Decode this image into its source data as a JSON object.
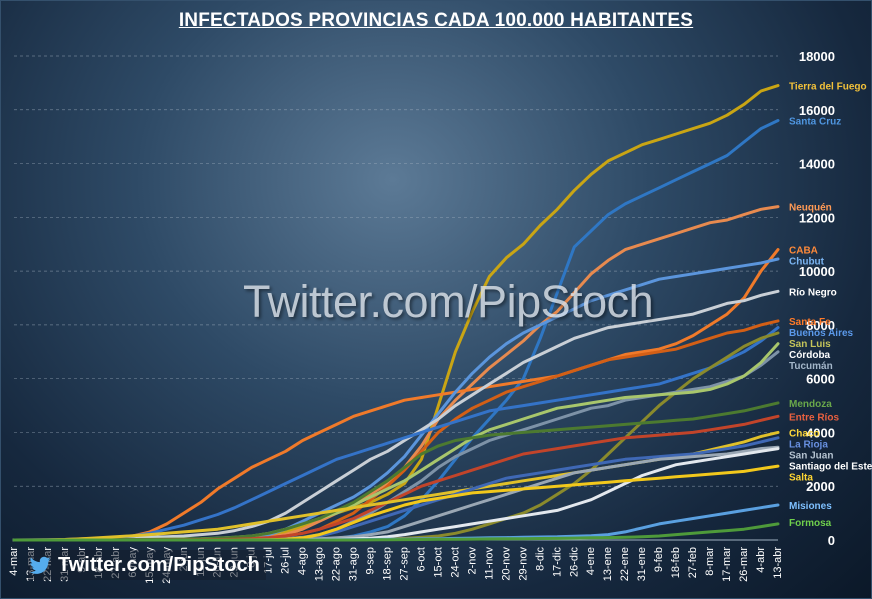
{
  "chart_data": {
    "type": "line",
    "title": "INFECTADOS  PROVINCIAS CADA 100.000 HABITANTES",
    "ylim": [
      0,
      18000
    ],
    "yticks": [
      0,
      2000,
      4000,
      6000,
      8000,
      10000,
      12000,
      14000,
      16000,
      18000
    ],
    "grid": true,
    "legend": "direct labels at right end of lines",
    "xtick_labels": [
      "4-mar",
      "13-mar",
      "22-mar",
      "31-mar",
      "9-abr",
      "18-abr",
      "27-abr",
      "6-may",
      "15-may",
      "24-may",
      "2-jun",
      "11-jun",
      "20-jun",
      "29-jun",
      "8-jul",
      "17-jul",
      "26-jul",
      "4-ago",
      "13-ago",
      "22-ago",
      "31-ago",
      "9-sep",
      "18-sep",
      "27-sep",
      "6-oct",
      "15-oct",
      "24-oct",
      "2-nov",
      "11-nov",
      "20-nov",
      "29-nov",
      "8-dic",
      "17-dic",
      "26-dic",
      "4-ene",
      "13-ene",
      "22-ene",
      "31-ene",
      "9-feb",
      "18-feb",
      "27-feb",
      "8-mar",
      "17-mar",
      "26-mar",
      "4-abr",
      "13-abr"
    ],
    "series": [
      {
        "name": "Tierra del Fuego",
        "color": "#c9a514",
        "label_color": "#f2c13a",
        "values": [
          0,
          0,
          0,
          5,
          10,
          15,
          15,
          15,
          15,
          15,
          20,
          20,
          25,
          40,
          80,
          150,
          300,
          500,
          800,
          1000,
          1200,
          1400,
          1700,
          2100,
          3000,
          5000,
          7000,
          8500,
          9800,
          10500,
          11000,
          11700,
          12300,
          13000,
          13600,
          14100,
          14400,
          14700,
          14900,
          15100,
          15300,
          15500,
          15800,
          16200,
          16700,
          16900
        ]
      },
      {
        "name": "Santa Cruz",
        "color": "#2f77c4",
        "label_color": "#4f96e0",
        "values": [
          0,
          0,
          0,
          0,
          0,
          0,
          0,
          0,
          0,
          0,
          0,
          0,
          0,
          0,
          0,
          0,
          0,
          10,
          30,
          60,
          150,
          300,
          500,
          900,
          1500,
          2200,
          3000,
          3800,
          4500,
          5200,
          6000,
          7500,
          9200,
          10900,
          11500,
          12100,
          12500,
          12800,
          13100,
          13400,
          13700,
          14000,
          14300,
          14800,
          15300,
          15600
        ]
      },
      {
        "name": "Neuquén",
        "color": "#e78a4f",
        "label_color": "#ff9a55",
        "values": [
          0,
          0,
          0,
          0,
          10,
          15,
          20,
          20,
          20,
          20,
          25,
          30,
          40,
          60,
          80,
          120,
          200,
          400,
          700,
          1000,
          1300,
          1700,
          2100,
          2700,
          3500,
          4500,
          5200,
          5800,
          6400,
          6900,
          7400,
          8000,
          8500,
          9200,
          9900,
          10400,
          10800,
          11000,
          11200,
          11400,
          11600,
          11800,
          11900,
          12100,
          12300,
          12400
        ]
      },
      {
        "name": "CABA",
        "color": "#f07a2a",
        "label_color": "#ff8a3a",
        "values": [
          0,
          5,
          10,
          20,
          40,
          60,
          80,
          150,
          300,
          600,
          1000,
          1400,
          1900,
          2300,
          2700,
          3000,
          3300,
          3700,
          4000,
          4300,
          4600,
          4800,
          5000,
          5200,
          5300,
          5400,
          5500,
          5600,
          5700,
          5800,
          5900,
          6000,
          6100,
          6300,
          6500,
          6700,
          6900,
          7000,
          7100,
          7300,
          7600,
          8000,
          8400,
          9000,
          10000,
          10800
        ]
      },
      {
        "name": "Chubut",
        "color": "#5b95dc",
        "label_color": "#7ab4f2",
        "values": [
          0,
          0,
          0,
          0,
          0,
          0,
          0,
          0,
          5,
          10,
          15,
          20,
          30,
          50,
          100,
          200,
          400,
          700,
          1000,
          1300,
          1600,
          2000,
          2500,
          3100,
          3900,
          4700,
          5500,
          6200,
          6800,
          7300,
          7700,
          8000,
          8300,
          8600,
          8900,
          9100,
          9300,
          9500,
          9700,
          9800,
          9900,
          10000,
          10100,
          10200,
          10300,
          10450
        ]
      },
      {
        "name": "Río Negro",
        "color": "#c9cfd6",
        "label_color": "#ffffff",
        "values": [
          0,
          0,
          0,
          5,
          20,
          40,
          60,
          80,
          100,
          120,
          150,
          200,
          250,
          350,
          500,
          700,
          1000,
          1400,
          1800,
          2200,
          2600,
          3000,
          3300,
          3700,
          4100,
          4500,
          5000,
          5400,
          5800,
          6200,
          6600,
          6900,
          7200,
          7500,
          7700,
          7900,
          8000,
          8100,
          8200,
          8300,
          8400,
          8600,
          8800,
          8900,
          9100,
          9250
        ]
      },
      {
        "name": "Santa Fe",
        "color": "#d35f16",
        "label_color": "#ff7a28",
        "values": [
          0,
          0,
          0,
          5,
          10,
          10,
          10,
          10,
          10,
          15,
          20,
          20,
          30,
          40,
          60,
          90,
          150,
          250,
          400,
          700,
          1000,
          1500,
          2000,
          2600,
          3300,
          4000,
          4500,
          4900,
          5200,
          5500,
          5700,
          5900,
          6100,
          6300,
          6500,
          6700,
          6800,
          6900,
          7000,
          7100,
          7300,
          7500,
          7700,
          7800,
          8000,
          8150
        ]
      },
      {
        "name": "Buenos Aires",
        "color": "#3473c8",
        "label_color": "#5b99ea",
        "values": [
          0,
          5,
          10,
          20,
          40,
          60,
          100,
          150,
          250,
          400,
          550,
          750,
          950,
          1200,
          1500,
          1800,
          2100,
          2400,
          2700,
          3000,
          3200,
          3400,
          3600,
          3800,
          4000,
          4200,
          4400,
          4600,
          4800,
          4900,
          5000,
          5100,
          5200,
          5300,
          5400,
          5500,
          5600,
          5700,
          5800,
          6000,
          6200,
          6400,
          6700,
          7000,
          7400,
          7900
        ]
      },
      {
        "name": "San Luis",
        "color": "#8a8a2c",
        "label_color": "#c4c45a",
        "values": [
          0,
          0,
          0,
          0,
          0,
          0,
          0,
          0,
          0,
          0,
          0,
          0,
          0,
          0,
          0,
          0,
          0,
          0,
          5,
          10,
          20,
          30,
          40,
          60,
          100,
          150,
          250,
          400,
          600,
          800,
          1000,
          1300,
          1700,
          2100,
          2600,
          3200,
          3800,
          4400,
          5000,
          5500,
          6000,
          6400,
          6800,
          7200,
          7500,
          7700
        ]
      },
      {
        "name": "Tucumán",
        "color": "#7d92a7",
        "label_color": "#a3b6c9",
        "values": [
          0,
          0,
          0,
          0,
          0,
          0,
          0,
          0,
          0,
          0,
          0,
          0,
          0,
          5,
          10,
          20,
          50,
          100,
          200,
          400,
          700,
          1000,
          1400,
          1800,
          2200,
          2700,
          3100,
          3400,
          3700,
          3900,
          4100,
          4300,
          4500,
          4700,
          4900,
          5000,
          5200,
          5300,
          5400,
          5500,
          5600,
          5700,
          5900,
          6100,
          6500,
          7000
        ]
      },
      {
        "name": "Córdoba",
        "color": "#a8c66c",
        "label_color": "#ffffff",
        "values": [
          0,
          0,
          0,
          5,
          10,
          15,
          20,
          20,
          25,
          30,
          40,
          50,
          70,
          100,
          150,
          250,
          400,
          600,
          800,
          1000,
          1300,
          1600,
          1900,
          2200,
          2600,
          3000,
          3400,
          3800,
          4100,
          4300,
          4500,
          4700,
          4900,
          5000,
          5100,
          5200,
          5300,
          5350,
          5400,
          5450,
          5500,
          5600,
          5800,
          6100,
          6600,
          7300
        ]
      },
      {
        "name": "Mendoza",
        "color": "#4c7a30",
        "label_color": "#6aa84a",
        "values": [
          0,
          0,
          0,
          5,
          10,
          15,
          20,
          20,
          20,
          25,
          30,
          40,
          60,
          100,
          150,
          250,
          400,
          600,
          800,
          1100,
          1400,
          1800,
          2200,
          2700,
          3200,
          3500,
          3700,
          3800,
          3900,
          3950,
          4000,
          4050,
          4100,
          4150,
          4200,
          4250,
          4300,
          4350,
          4400,
          4450,
          4500,
          4600,
          4700,
          4800,
          4950,
          5100
        ]
      },
      {
        "name": "Entre Ríos",
        "color": "#c2442a",
        "label_color": "#e9603f",
        "values": [
          0,
          0,
          0,
          0,
          5,
          5,
          5,
          5,
          5,
          10,
          10,
          15,
          20,
          30,
          50,
          80,
          150,
          250,
          400,
          600,
          800,
          1100,
          1400,
          1700,
          2000,
          2200,
          2400,
          2600,
          2800,
          3000,
          3200,
          3300,
          3400,
          3500,
          3600,
          3700,
          3800,
          3850,
          3900,
          3950,
          4000,
          4100,
          4200,
          4300,
          4450,
          4600
        ]
      },
      {
        "name": "Chaco",
        "color": "#e0c02a",
        "label_color": "#ffd93a",
        "values": [
          0,
          0,
          5,
          20,
          50,
          80,
          120,
          160,
          200,
          250,
          300,
          350,
          400,
          500,
          600,
          700,
          800,
          900,
          1000,
          1100,
          1200,
          1300,
          1400,
          1500,
          1600,
          1700,
          1800,
          1900,
          2000,
          2100,
          2200,
          2300,
          2400,
          2500,
          2600,
          2700,
          2800,
          2900,
          3000,
          3100,
          3200,
          3350,
          3500,
          3650,
          3850,
          4000
        ]
      },
      {
        "name": "La Rioja",
        "color": "#3f68b5",
        "label_color": "#6890e0",
        "values": [
          0,
          0,
          0,
          0,
          0,
          0,
          0,
          0,
          0,
          0,
          0,
          0,
          0,
          0,
          5,
          10,
          30,
          80,
          150,
          300,
          500,
          700,
          900,
          1100,
          1300,
          1500,
          1700,
          1900,
          2100,
          2300,
          2400,
          2500,
          2600,
          2700,
          2800,
          2900,
          3000,
          3050,
          3100,
          3150,
          3200,
          3300,
          3400,
          3500,
          3650,
          3800
        ]
      },
      {
        "name": "San Juan",
        "color": "#9aa7b4",
        "label_color": "#b4c2d0",
        "values": [
          0,
          0,
          0,
          0,
          0,
          0,
          0,
          0,
          0,
          0,
          0,
          0,
          0,
          0,
          0,
          5,
          10,
          30,
          50,
          80,
          120,
          200,
          300,
          500,
          700,
          900,
          1100,
          1300,
          1500,
          1700,
          1900,
          2100,
          2300,
          2500,
          2600,
          2700,
          2800,
          2900,
          3000,
          3050,
          3100,
          3150,
          3200,
          3300,
          3400,
          3450
        ]
      },
      {
        "name": "Santiago del Estero",
        "color": "#e3e8ee",
        "label_color": "#ffffff",
        "values": [
          0,
          0,
          0,
          0,
          0,
          0,
          0,
          0,
          0,
          0,
          0,
          0,
          0,
          0,
          0,
          0,
          0,
          5,
          10,
          20,
          40,
          70,
          120,
          200,
          300,
          400,
          500,
          600,
          700,
          800,
          900,
          1000,
          1100,
          1300,
          1500,
          1800,
          2100,
          2400,
          2600,
          2800,
          2900,
          3000,
          3100,
          3200,
          3300,
          3400
        ]
      },
      {
        "name": "Salta",
        "color": "#f2c81c",
        "label_color": "#ffd633",
        "values": [
          0,
          0,
          0,
          0,
          0,
          0,
          0,
          0,
          0,
          0,
          0,
          0,
          0,
          0,
          5,
          10,
          30,
          80,
          200,
          400,
          650,
          900,
          1100,
          1300,
          1450,
          1550,
          1650,
          1750,
          1800,
          1850,
          1900,
          1950,
          2000,
          2050,
          2100,
          2150,
          2200,
          2250,
          2300,
          2350,
          2400,
          2450,
          2500,
          2550,
          2650,
          2750
        ]
      },
      {
        "name": "Misiones",
        "color": "#5aa0e0",
        "label_color": "#7ec0ff",
        "values": [
          0,
          0,
          0,
          0,
          0,
          0,
          0,
          0,
          0,
          0,
          0,
          0,
          0,
          0,
          0,
          0,
          0,
          0,
          5,
          10,
          15,
          20,
          25,
          30,
          40,
          50,
          60,
          70,
          80,
          90,
          100,
          110,
          120,
          140,
          160,
          200,
          300,
          450,
          600,
          700,
          800,
          900,
          1000,
          1100,
          1200,
          1300
        ]
      },
      {
        "name": "Formosa",
        "color": "#4e9a3a",
        "label_color": "#6fcf4c",
        "values": [
          0,
          0,
          0,
          0,
          0,
          0,
          0,
          0,
          0,
          0,
          0,
          0,
          0,
          0,
          0,
          0,
          0,
          0,
          0,
          0,
          0,
          5,
          10,
          15,
          20,
          25,
          30,
          35,
          40,
          45,
          50,
          55,
          60,
          70,
          80,
          90,
          100,
          120,
          150,
          200,
          250,
          300,
          350,
          400,
          500,
          600
        ]
      }
    ]
  },
  "watermark": "Twitter.com/PipStoch",
  "footer": {
    "label": "Twitter.com/PipStoch",
    "icon": "twitter-bird-icon"
  }
}
